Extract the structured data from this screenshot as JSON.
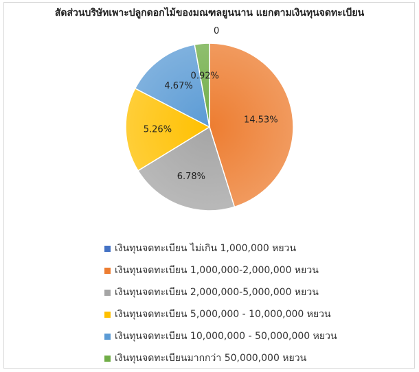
{
  "chart_data": {
    "type": "pie",
    "title": "สัดส่วนบริษัทเพาะปลูกดอกไม้ของมณฑลยูนนาน แยกตามเงินทุนจดทะเบียน",
    "slices": [
      {
        "label": "เงินทุนจดทะเบียน ไม่เกิน 1,000,000 หยวน",
        "value": 0,
        "display": "0",
        "color": "#4472C4"
      },
      {
        "label": "เงินทุนจดทะเบียน 1,000,000-2,000,000 หยวน",
        "value": 14.53,
        "display": "14.53%",
        "color": "#ED7D31"
      },
      {
        "label": "เงินทุนจดทะเบียน 2,000,000-5,000,000 หยวน",
        "value": 6.78,
        "display": "6.78%",
        "color": "#A5A5A5"
      },
      {
        "label": "เงินทุนจดทะเบียน 5,000,000 - 10,000,000 หยวน",
        "value": 5.26,
        "display": "5.26%",
        "color": "#FFC000"
      },
      {
        "label": "เงินทุนจดทะเบียน 10,000,000 - 50,000,000 หยวน",
        "value": 4.67,
        "display": "4.67%",
        "color": "#5B9BD5"
      },
      {
        "label": "เงินทุนจดทะเบียนมากกว่า 50,000,000 หยวน",
        "value": 0.92,
        "display": "0.92%",
        "color": "#70AD47"
      }
    ],
    "legend_position": "bottom"
  }
}
